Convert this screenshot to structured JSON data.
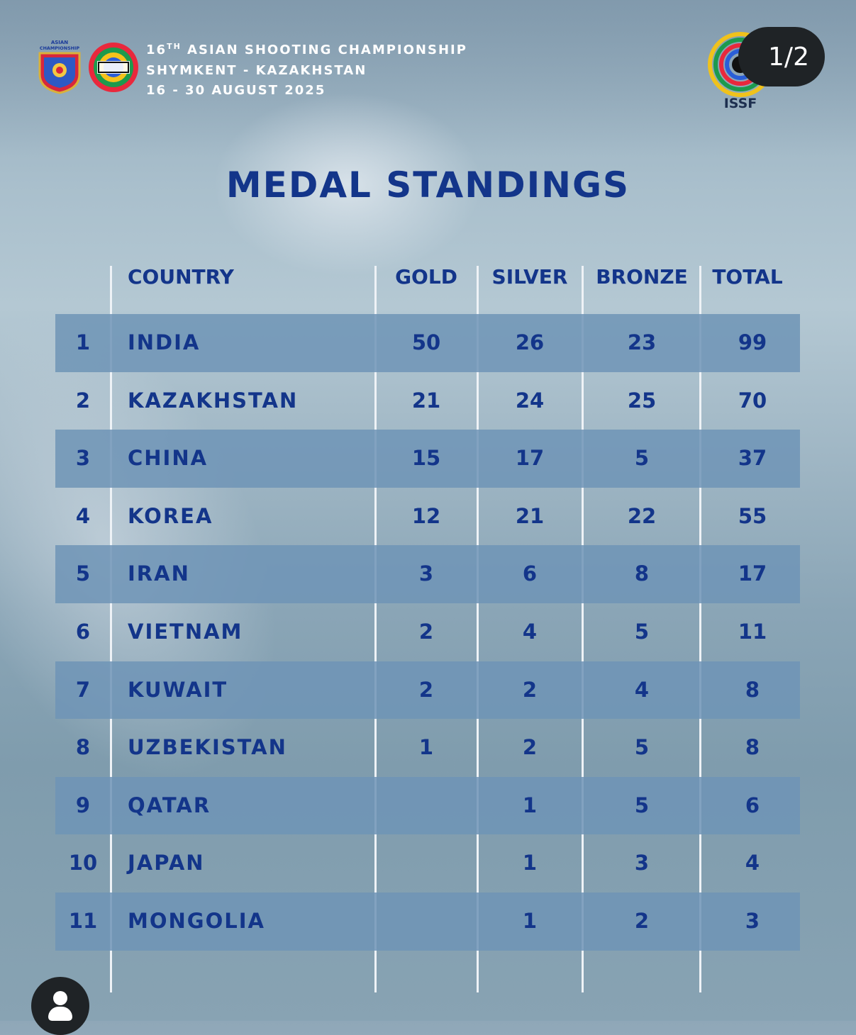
{
  "header": {
    "line1_prefix": "16",
    "line1_sup": "TH",
    "line1_rest": " ASIAN SHOOTING CHAMPIONSHIP",
    "line2": "SHYMKENT - KAZAKHSTAN",
    "line3": "16 - 30 AUGUST 2025",
    "logo_left_text_1": "ASIAN",
    "logo_left_text_2": "CHAMPIONSHIP",
    "issf_label": "ISSF"
  },
  "pager": "1/2",
  "title": "MEDAL STANDINGS",
  "table": {
    "headers": {
      "country": "COUNTRY",
      "gold": "GOLD",
      "silver": "SILVER",
      "bronze": "BRONZE",
      "total": "TOTAL"
    },
    "rows": [
      {
        "rank": "1",
        "country": "INDIA",
        "gold": "50",
        "silver": "26",
        "bronze": "23",
        "total": "99"
      },
      {
        "rank": "2",
        "country": "KAZAKHSTAN",
        "gold": "21",
        "silver": "24",
        "bronze": "25",
        "total": "70"
      },
      {
        "rank": "3",
        "country": "CHINA",
        "gold": "15",
        "silver": "17",
        "bronze": "5",
        "total": "37"
      },
      {
        "rank": "4",
        "country": "KOREA",
        "gold": "12",
        "silver": "21",
        "bronze": "22",
        "total": "55"
      },
      {
        "rank": "5",
        "country": "IRAN",
        "gold": "3",
        "silver": "6",
        "bronze": "8",
        "total": "17"
      },
      {
        "rank": "6",
        "country": "VIETNAM",
        "gold": "2",
        "silver": "4",
        "bronze": "5",
        "total": "11"
      },
      {
        "rank": "7",
        "country": "KUWAIT",
        "gold": "2",
        "silver": "2",
        "bronze": "4",
        "total": "8"
      },
      {
        "rank": "8",
        "country": "UZBEKISTAN",
        "gold": "1",
        "silver": "2",
        "bronze": "5",
        "total": "8"
      },
      {
        "rank": "9",
        "country": "QATAR",
        "gold": "",
        "silver": "1",
        "bronze": "5",
        "total": "6"
      },
      {
        "rank": "10",
        "country": "JAPAN",
        "gold": "",
        "silver": "1",
        "bronze": "3",
        "total": "4"
      },
      {
        "rank": "11",
        "country": "MONGOLIA",
        "gold": "",
        "silver": "1",
        "bronze": "2",
        "total": "3"
      }
    ]
  },
  "colors": {
    "text": "#13358a",
    "row_shade": "#6e94b6",
    "pager_bg": "#1f2326"
  },
  "icons": {
    "profile": "user-avatar-icon"
  }
}
